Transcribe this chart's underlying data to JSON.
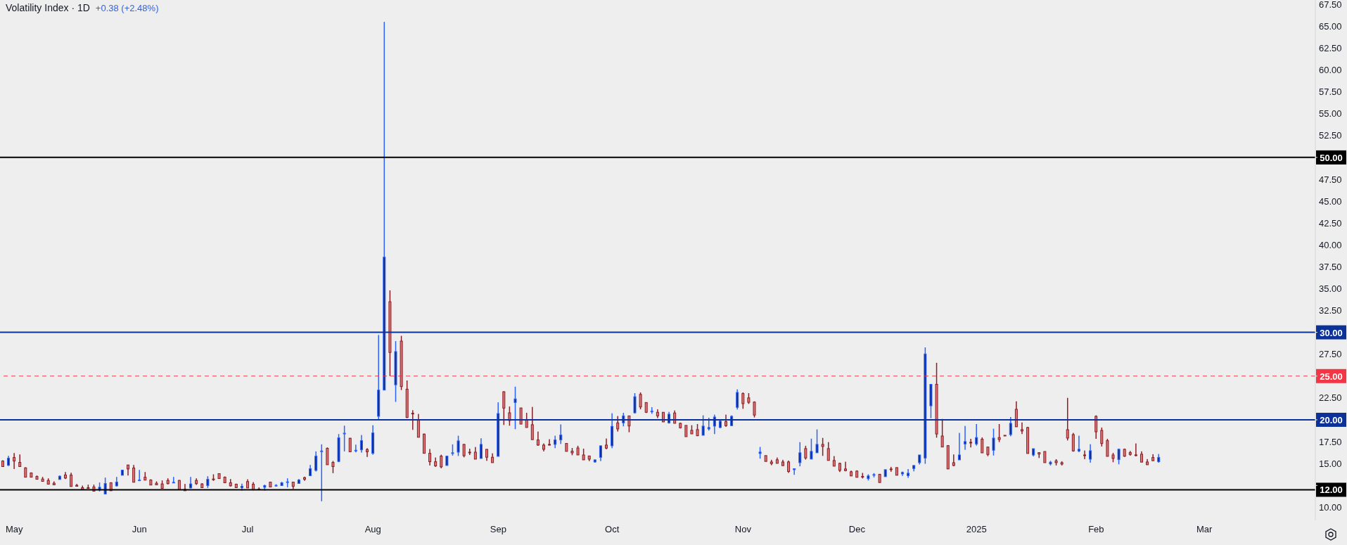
{
  "chart_data": {
    "type": "candlestick",
    "title": "Volatility Index · 1D",
    "subtitle": "+0.38 (+2.48%)",
    "categories": [
      null,
      null,
      "May",
      null,
      null,
      null,
      null,
      null,
      null,
      null,
      null,
      null,
      null,
      null,
      null,
      null,
      null,
      null,
      null,
      null,
      null,
      null,
      null,
      null,
      "Jun",
      null,
      null,
      null,
      null,
      null,
      null,
      null,
      null,
      null,
      null,
      null,
      null,
      null,
      null,
      null,
      null,
      null,
      null,
      "Jul",
      null,
      null,
      null,
      null,
      null,
      null,
      null,
      null,
      null,
      null,
      null,
      null,
      null,
      null,
      null,
      null,
      null,
      null,
      null,
      null,
      null,
      "Aug",
      null,
      null,
      null,
      null,
      null,
      null,
      null,
      null,
      null,
      null,
      null,
      null,
      null,
      null,
      null,
      null,
      null,
      null,
      null,
      null,
      null,
      "Sep",
      null,
      null,
      null,
      null,
      null,
      null,
      null,
      null,
      null,
      null,
      null,
      null,
      null,
      null,
      null,
      null,
      null,
      null,
      null,
      "Oct",
      null,
      null,
      null,
      null,
      null,
      null,
      null,
      null,
      null,
      null,
      null,
      null,
      null,
      null,
      null,
      null,
      null,
      null,
      null,
      null,
      null,
      null,
      "Nov",
      null,
      null,
      null,
      null,
      null,
      null,
      null,
      null,
      null,
      null,
      null,
      null,
      null,
      null,
      null,
      null,
      null,
      null,
      null,
      "Dec",
      null,
      null,
      null,
      null,
      null,
      null,
      null,
      null,
      null,
      null,
      null,
      null,
      null,
      null,
      null,
      null,
      null,
      null,
      null,
      null,
      "2025",
      null,
      null,
      null,
      null,
      null,
      null,
      null,
      null,
      null,
      null,
      null,
      null,
      null,
      null,
      null,
      null,
      null,
      null,
      null,
      null,
      "Feb",
      null,
      null,
      null,
      null,
      null,
      null,
      null,
      null,
      null,
      null,
      null,
      null,
      null,
      null,
      null,
      null,
      null,
      null,
      "Mar",
      null,
      null,
      null,
      null,
      null,
      null,
      null,
      null,
      null,
      null,
      null,
      null,
      null,
      null,
      null,
      null,
      null,
      null,
      null
    ],
    "ohlc": [
      [
        15.29,
        15.37,
        14.65,
        14.65
      ],
      [
        14.81,
        15.88,
        14.7,
        15.61
      ],
      [
        15.69,
        16.2,
        14.38,
        15.29
      ],
      [
        15.13,
        16.04,
        14.65,
        14.65
      ],
      [
        14.51,
        14.57,
        13.44,
        13.44
      ],
      [
        13.93,
        13.98,
        13.44,
        13.44
      ],
      [
        13.52,
        13.63,
        13.2,
        13.2
      ],
      [
        13.23,
        13.47,
        12.96,
        12.96
      ],
      [
        13.07,
        13.31,
        12.64,
        12.64
      ],
      [
        12.75,
        12.96,
        12.56,
        12.56
      ],
      [
        13.18,
        13.63,
        13.18,
        13.55
      ],
      [
        13.69,
        14.03,
        13.23,
        13.34
      ],
      [
        13.69,
        13.95,
        12.37,
        12.37
      ],
      [
        12.51,
        12.67,
        12.4,
        12.4
      ],
      [
        12.24,
        12.48,
        12.0,
        12.0
      ],
      [
        12.24,
        12.59,
        12.16,
        12.16
      ],
      [
        12.32,
        12.59,
        11.84,
        11.84
      ],
      [
        11.97,
        12.83,
        11.81,
        12.29
      ],
      [
        11.52,
        13.39,
        11.52,
        12.72
      ],
      [
        12.8,
        12.86,
        11.89,
        11.89
      ],
      [
        12.45,
        13.47,
        12.37,
        12.88
      ],
      [
        13.66,
        14.25,
        13.66,
        14.25
      ],
      [
        14.84,
        14.84,
        13.63,
        14.38
      ],
      [
        14.49,
        14.84,
        12.86,
        12.86
      ],
      [
        13.07,
        14.27,
        12.99,
        13.12
      ],
      [
        13.44,
        14.03,
        13.1,
        13.1
      ],
      [
        13.12,
        13.2,
        12.54,
        12.54
      ],
      [
        12.75,
        12.96,
        12.56,
        12.56
      ],
      [
        12.67,
        13.07,
        12.16,
        12.16
      ],
      [
        13.07,
        13.31,
        12.62,
        12.7
      ],
      [
        12.78,
        13.47,
        12.78,
        12.86
      ],
      [
        13.07,
        13.12,
        12.0,
        12.0
      ],
      [
        12.05,
        12.67,
        11.89,
        11.89
      ],
      [
        12.21,
        13.47,
        12.16,
        12.67
      ],
      [
        13.07,
        13.31,
        12.56,
        12.7
      ],
      [
        12.67,
        12.75,
        12.24,
        12.24
      ],
      [
        12.48,
        13.55,
        12.21,
        13.2
      ],
      [
        13.23,
        13.77,
        13.02,
        13.18
      ],
      [
        13.85,
        13.85,
        13.28,
        13.28
      ],
      [
        13.44,
        13.52,
        12.8,
        12.8
      ],
      [
        12.8,
        13.23,
        12.37,
        12.45
      ],
      [
        12.64,
        12.7,
        12.24,
        12.24
      ],
      [
        12.24,
        12.7,
        11.89,
        12.4
      ],
      [
        12.94,
        13.2,
        12.21,
        12.21
      ],
      [
        12.64,
        12.88,
        11.92,
        12.0
      ],
      [
        12.08,
        12.27,
        11.95,
        12.03
      ],
      [
        12.29,
        12.59,
        11.89,
        12.48
      ],
      [
        12.88,
        12.88,
        12.32,
        12.32
      ],
      [
        12.45,
        12.64,
        12.37,
        12.51
      ],
      [
        12.48,
        12.91,
        12.48,
        12.8
      ],
      [
        12.86,
        13.31,
        12.29,
        12.91
      ],
      [
        12.88,
        12.88,
        12.08,
        12.4
      ],
      [
        12.72,
        13.23,
        12.72,
        13.12
      ],
      [
        13.39,
        13.5,
        13.02,
        13.2
      ],
      [
        13.61,
        14.84,
        13.61,
        14.41
      ],
      [
        14.22,
        16.39,
        14.09,
        15.85
      ],
      [
        16.39,
        17.19,
        10.69,
        16.44
      ],
      [
        16.74,
        16.84,
        14.86,
        14.86
      ],
      [
        15.13,
        15.29,
        13.9,
        14.65
      ],
      [
        15.24,
        18.37,
        15.16,
        17.94
      ],
      [
        18.42,
        19.33,
        16.39,
        18.47
      ],
      [
        17.89,
        17.94,
        16.34,
        16.34
      ],
      [
        16.47,
        17.16,
        16.28,
        16.52
      ],
      [
        16.57,
        18.26,
        16.25,
        17.62
      ],
      [
        16.6,
        16.76,
        15.75,
        16.34
      ],
      [
        16.17,
        19.38,
        16.01,
        18.5
      ],
      [
        20.4,
        29.7,
        20.03,
        23.4
      ],
      [
        23.4,
        65.5,
        23.4,
        38.6
      ],
      [
        33.5,
        34.8,
        25.0,
        27.7
      ],
      [
        24.0,
        29.0,
        22.05,
        27.8
      ],
      [
        29.0,
        29.6,
        23.4,
        23.8
      ],
      [
        23.5,
        24.5,
        20.2,
        20.27
      ],
      [
        20.75,
        21.1,
        18.85,
        20.72
      ],
      [
        19.97,
        20.67,
        18.0,
        18.0
      ],
      [
        18.37,
        18.42,
        16.17,
        16.17
      ],
      [
        16.17,
        16.66,
        14.78,
        15.21
      ],
      [
        15.21,
        15.69,
        14.62,
        14.73
      ],
      [
        15.85,
        16.01,
        14.46,
        14.62
      ],
      [
        14.78,
        15.85,
        14.78,
        15.85
      ],
      [
        16.17,
        17.19,
        15.91,
        16.23
      ],
      [
        16.3,
        18.18,
        15.87,
        17.59
      ],
      [
        17.19,
        17.24,
        15.71,
        15.9
      ],
      [
        16.3,
        16.7,
        15.98,
        16.22
      ],
      [
        16.3,
        16.89,
        15.5,
        15.5
      ],
      [
        15.58,
        17.89,
        15.58,
        17.19
      ],
      [
        16.63,
        16.63,
        15.31,
        15.72
      ],
      [
        15.72,
        16.17,
        15.1,
        15.1
      ],
      [
        15.82,
        22.0,
        15.82,
        20.72
      ],
      [
        23.21,
        23.26,
        19.41,
        21.34
      ],
      [
        20.8,
        21.52,
        19.33,
        19.92
      ],
      [
        21.98,
        23.79,
        18.93,
        22.39
      ],
      [
        21.36,
        21.36,
        19.51,
        19.51
      ],
      [
        19.97,
        20.8,
        19.12,
        19.12
      ],
      [
        19.44,
        21.47,
        17.73,
        17.73
      ],
      [
        17.7,
        18.66,
        17.03,
        17.11
      ],
      [
        17.11,
        17.3,
        16.39,
        16.63
      ],
      [
        17.19,
        17.78,
        17.06,
        17.14
      ],
      [
        17.19,
        18.18,
        16.76,
        17.7
      ],
      [
        17.7,
        19.47,
        17.24,
        18.26
      ],
      [
        17.3,
        17.3,
        16.39,
        16.39
      ],
      [
        16.41,
        16.78,
        15.95,
        16.22
      ],
      [
        16.78,
        17.03,
        15.98,
        15.98
      ],
      [
        15.98,
        16.7,
        15.42,
        15.42
      ],
      [
        15.87,
        15.87,
        15.28,
        15.5
      ],
      [
        15.18,
        15.45,
        15.1,
        15.42
      ],
      [
        15.71,
        17.03,
        15.28,
        17.03
      ],
      [
        17.11,
        17.86,
        16.63,
        16.76
      ],
      [
        17.03,
        20.75,
        16.76,
        19.25
      ],
      [
        19.65,
        20.43,
        18.66,
        18.96
      ],
      [
        19.65,
        20.8,
        19.25,
        20.45
      ],
      [
        20.45,
        20.45,
        18.58,
        19.3
      ],
      [
        20.8,
        23.05,
        20.72,
        22.64
      ],
      [
        22.91,
        23.13,
        21.2,
        21.47
      ],
      [
        21.98,
        21.98,
        20.78,
        20.86
      ],
      [
        20.94,
        21.44,
        20.69,
        20.99
      ],
      [
        20.86,
        21.2,
        20.19,
        20.45
      ],
      [
        20.86,
        20.86,
        19.76,
        19.76
      ],
      [
        19.65,
        20.91,
        19.57,
        20.64
      ],
      [
        20.78,
        21.07,
        19.6,
        19.6
      ],
      [
        19.6,
        19.68,
        19.01,
        19.09
      ],
      [
        19.36,
        19.36,
        18.07,
        18.07
      ],
      [
        18.8,
        19.38,
        18.39,
        18.39
      ],
      [
        18.88,
        19.52,
        18.13,
        18.18
      ],
      [
        18.23,
        20.51,
        18.23,
        19.28
      ],
      [
        18.96,
        20.24,
        18.77,
        19.12
      ],
      [
        19.28,
        20.59,
        18.37,
        20.32
      ],
      [
        19.12,
        19.95,
        19.04,
        19.84
      ],
      [
        19.79,
        20.59,
        19.2,
        19.33
      ],
      [
        19.33,
        20.51,
        19.33,
        20.4
      ],
      [
        21.42,
        23.48,
        21.18,
        23.13
      ],
      [
        23.0,
        23.13,
        21.26,
        21.85
      ],
      [
        22.51,
        23.05,
        21.82,
        22.0
      ],
      [
        22.03,
        22.11,
        20.27,
        20.54
      ],
      [
        16.15,
        16.9,
        15.56,
        16.31
      ],
      [
        15.91,
        15.91,
        15.24,
        15.24
      ],
      [
        15.18,
        15.43,
        14.81,
        15.0
      ],
      [
        15.43,
        15.69,
        15.02,
        15.02
      ],
      [
        15.18,
        15.43,
        14.76,
        14.76
      ],
      [
        15.18,
        15.34,
        13.93,
        14.09
      ],
      [
        14.3,
        14.41,
        13.71,
        14.41
      ],
      [
        15.1,
        17.45,
        14.68,
        16.23
      ],
      [
        16.71,
        17.03,
        15.45,
        15.64
      ],
      [
        15.51,
        17.85,
        15.51,
        16.39
      ],
      [
        16.23,
        18.9,
        16.23,
        17.19
      ],
      [
        17.19,
        17.93,
        15.88,
        16.95
      ],
      [
        16.71,
        17.45,
        15.35,
        15.35
      ],
      [
        15.35,
        15.85,
        14.7,
        14.7
      ],
      [
        15.02,
        15.1,
        14.03,
        14.22
      ],
      [
        14.38,
        15.21,
        14.11,
        14.19
      ],
      [
        14.06,
        14.19,
        13.58,
        13.58
      ],
      [
        14.14,
        14.22,
        13.42,
        13.42
      ],
      [
        13.53,
        13.93,
        13.29,
        13.47
      ],
      [
        13.28,
        13.77,
        13.07,
        13.58
      ],
      [
        13.69,
        13.9,
        13.42,
        13.74
      ],
      [
        13.77,
        13.82,
        12.83,
        12.83
      ],
      [
        13.5,
        14.3,
        13.5,
        14.3
      ],
      [
        14.38,
        14.62,
        14.06,
        14.33
      ],
      [
        14.54,
        14.54,
        13.66,
        13.66
      ],
      [
        13.82,
        14.09,
        13.58,
        13.98
      ],
      [
        13.62,
        14.37,
        13.36,
        13.89
      ],
      [
        14.43,
        14.78,
        14.11,
        14.78
      ],
      [
        15.1,
        15.98,
        14.89,
        15.98
      ],
      [
        15.63,
        28.28,
        14.97,
        27.53
      ],
      [
        21.6,
        24.06,
        20.18,
        24.06
      ],
      [
        24.06,
        26.52,
        17.96,
        18.38
      ],
      [
        18.15,
        20.1,
        16.89,
        16.89
      ],
      [
        17.05,
        17.11,
        14.38,
        14.38
      ],
      [
        15.1,
        16.04,
        14.7,
        14.78
      ],
      [
        15.42,
        18.5,
        15.42,
        15.98
      ],
      [
        17.24,
        19.3,
        16.57,
        17.51
      ],
      [
        17.43,
        17.83,
        16.84,
        17.38
      ],
      [
        17.24,
        19.52,
        17.05,
        17.97
      ],
      [
        17.78,
        17.99,
        16.22,
        16.22
      ],
      [
        16.89,
        16.89,
        15.84,
        16.04
      ],
      [
        16.52,
        18.98,
        15.92,
        17.91
      ],
      [
        17.97,
        19.52,
        17.45,
        17.75
      ],
      [
        18.23,
        18.23,
        18.15,
        18.15
      ],
      [
        18.31,
        20.32,
        18.12,
        19.6
      ],
      [
        21.2,
        22.11,
        19.2,
        19.2
      ],
      [
        18.88,
        19.7,
        18.37,
        18.72
      ],
      [
        19.12,
        19.2,
        16.15,
        16.15
      ],
      [
        15.98,
        16.7,
        15.82,
        16.7
      ],
      [
        16.25,
        16.3,
        15.63,
        16.09
      ],
      [
        16.38,
        16.38,
        15.1,
        15.1
      ],
      [
        14.96,
        15.31,
        14.78,
        15.15
      ],
      [
        15.31,
        15.5,
        14.78,
        15.1
      ],
      [
        15.1,
        15.26,
        14.78,
        14.94
      ],
      [
        18.87,
        22.51,
        17.64,
        17.91
      ],
      [
        18.31,
        18.5,
        16.36,
        16.44
      ],
      [
        16.44,
        18.18,
        16.3,
        16.63
      ],
      [
        15.98,
        16.49,
        15.5,
        15.9
      ],
      [
        15.5,
        17.21,
        15.1,
        16.46
      ],
      [
        20.4,
        20.51,
        17.83,
        18.63
      ],
      [
        18.79,
        19.12,
        16.95,
        17.29
      ],
      [
        17.62,
        17.83,
        15.82,
        15.82
      ],
      [
        15.98,
        16.22,
        15.15,
        15.58
      ],
      [
        15.45,
        16.71,
        14.91,
        16.63
      ],
      [
        16.63,
        16.71,
        15.76,
        15.84
      ],
      [
        16.25,
        16.44,
        15.9,
        16.04
      ],
      [
        15.99,
        17.3,
        15.83,
        15.91
      ],
      [
        16.07,
        16.39,
        15.16,
        15.16
      ],
      [
        15.18,
        15.51,
        14.86,
        14.86
      ],
      [
        15.69,
        16.07,
        15.32,
        15.32
      ],
      [
        15.21,
        16.09,
        15.1,
        15.7
      ],
      null,
      null,
      null,
      null,
      null,
      null,
      null,
      null,
      null,
      null,
      null,
      null,
      null,
      null,
      null,
      null,
      null,
      null,
      null,
      null,
      null,
      null,
      null,
      null,
      null,
      null,
      null
    ],
    "colors": [
      "#8b1e24",
      "#2962ff",
      "#8b1e24",
      "#8b1e24",
      "#8b1e24",
      "#8b1e24",
      "#8b1e24",
      "#8b1e24",
      "#8b1e24",
      "#8b1e24",
      "#2962ff",
      "#8b1e24",
      "#8b1e24",
      "#8b1e24",
      "#8b1e24",
      "#8b1e24",
      "#8b1e24",
      "#2962ff",
      "#2962ff",
      "#8b1e24",
      "#2962ff",
      "#2962ff",
      "#8b1e24",
      "#8b1e24",
      "#2962ff",
      "#8b1e24",
      "#8b1e24",
      "#8b1e24",
      "#8b1e24",
      "#8b1e24",
      "#2962ff",
      "#8b1e24",
      "#8b1e24",
      "#2962ff",
      "#8b1e24",
      "#8b1e24",
      "#2962ff",
      "#8b1e24",
      "#8b1e24",
      "#8b1e24",
      "#8b1e24",
      "#8b1e24",
      "#2962ff",
      "#8b1e24",
      "#8b1e24",
      "#8b1e24",
      "#2962ff",
      "#8b1e24",
      "#2962ff",
      "#2962ff",
      "#2962ff",
      "#8b1e24",
      "#2962ff",
      "#8b1e24",
      "#2962ff",
      "#2962ff",
      "#2962ff",
      "#8b1e24",
      "#8b1e24",
      "#2962ff",
      "#2962ff",
      "#8b1e24",
      "#2962ff",
      "#2962ff",
      "#8b1e24",
      "#2962ff",
      "#2962ff",
      "#2962ff",
      "#8b1e24",
      "#2962ff",
      "#8b1e24",
      "#8b1e24",
      "#8b1e24",
      "#8b1e24",
      "#8b1e24",
      "#8b1e24",
      "#8b1e24",
      "#8b1e24",
      "#2962ff",
      "#2962ff",
      "#2962ff",
      "#8b1e24",
      "#8b1e24",
      "#8b1e24",
      "#2962ff",
      "#8b1e24",
      "#8b1e24",
      "#2962ff",
      "#8b1e24",
      "#8b1e24",
      "#2962ff",
      "#8b1e24",
      "#8b1e24",
      "#8b1e24",
      "#8b1e24",
      "#8b1e24",
      "#8b1e24",
      "#2962ff",
      "#2962ff",
      "#8b1e24",
      "#8b1e24",
      "#8b1e24",
      "#8b1e24",
      "#8b1e24",
      "#2962ff",
      "#2962ff",
      "#8b1e24",
      "#2962ff",
      "#8b1e24",
      "#2962ff",
      "#8b1e24",
      "#2962ff",
      "#8b1e24",
      "#8b1e24",
      "#2962ff",
      "#8b1e24",
      "#8b1e24",
      "#2962ff",
      "#8b1e24",
      "#8b1e24",
      "#8b1e24",
      "#8b1e24",
      "#8b1e24",
      "#2962ff",
      "#2962ff",
      "#2962ff",
      "#2962ff",
      "#8b1e24",
      "#2962ff",
      "#2962ff",
      "#8b1e24",
      "#8b1e24",
      "#8b1e24",
      "#2962ff",
      "#8b1e24",
      "#8b1e24",
      "#8b1e24",
      "#8b1e24",
      "#8b1e24",
      "#2962ff",
      "#2962ff",
      "#8b1e24",
      "#2962ff",
      "#2962ff",
      "#8b1e24",
      "#8b1e24",
      "#8b1e24",
      "#8b1e24",
      "#8b1e24",
      "#8b1e24",
      "#8b1e24",
      "#8b1e24",
      "#2962ff",
      "#2962ff",
      "#8b1e24",
      "#2962ff",
      "#8b1e24",
      "#8b1e24",
      "#2962ff",
      "#2962ff",
      "#2962ff",
      "#2962ff",
      "#2962ff",
      "#2962ff",
      "#8b1e24",
      "#8b1e24",
      "#8b1e24",
      "#8b1e24",
      "#2962ff",
      "#2962ff",
      "#8b1e24",
      "#2962ff",
      "#8b1e24",
      "#8b1e24",
      "#2962ff",
      "#8b1e24",
      "#8b1e24",
      "#2962ff",
      "#8b1e24",
      "#8b1e24",
      "#8b1e24",
      "#2962ff",
      "#8b1e24",
      "#8b1e24",
      "#2962ff",
      "#8b1e24",
      "#8b1e24",
      "#8b1e24",
      "#8b1e24",
      "#2962ff",
      "#8b1e24",
      "#2962ff",
      "#8b1e24",
      "#8b1e24",
      "#8b1e24",
      "#8b1e24",
      "#2962ff",
      "#8b1e24",
      "#8b1e24",
      "#8b1e24",
      "#8b1e24",
      "#8b1e24",
      "#8b1e24",
      "#2962ff",
      null,
      null,
      null,
      null,
      null,
      null,
      null,
      null,
      null,
      null,
      null,
      null,
      null,
      null,
      null,
      null,
      null,
      null,
      null,
      null,
      null,
      null,
      null,
      null,
      null,
      null,
      null
    ],
    "ylim": [
      8.5,
      68
    ],
    "yticks": [
      {
        "value": 10,
        "label": "10.00"
      },
      {
        "value": 12.5,
        "label": null
      },
      {
        "value": 15,
        "label": "15.00"
      },
      {
        "value": 17.5,
        "label": "17.50"
      },
      {
        "value": 20,
        "label": null
      },
      {
        "value": 22.5,
        "label": "22.50"
      },
      {
        "value": 25,
        "label": null
      },
      {
        "value": 27.5,
        "label": "27.50"
      },
      {
        "value": 30,
        "label": null
      },
      {
        "value": 32.5,
        "label": "32.50"
      },
      {
        "value": 35,
        "label": "35.00"
      },
      {
        "value": 37.5,
        "label": "37.50"
      },
      {
        "value": 40,
        "label": "40.00"
      },
      {
        "value": 42.5,
        "label": "42.50"
      },
      {
        "value": 45,
        "label": "45.00"
      },
      {
        "value": 47.5,
        "label": "47.50"
      },
      {
        "value": 50,
        "label": null
      },
      {
        "value": 52.5,
        "label": "52.50"
      },
      {
        "value": 55,
        "label": "55.00"
      },
      {
        "value": 57.5,
        "label": "57.50"
      },
      {
        "value": 60,
        "label": "60.00"
      },
      {
        "value": 62.5,
        "label": "62.50"
      },
      {
        "value": 65,
        "label": "65.00"
      },
      {
        "value": 67.5,
        "label": "67.50"
      }
    ],
    "ref_lines": [
      {
        "axis": "y",
        "value": 50,
        "label": "50.00",
        "color": "#000000",
        "line_style": "solid"
      },
      {
        "axis": "y",
        "value": 30,
        "label": "30.00",
        "color": "#0c3299",
        "line_style": "solid"
      },
      {
        "axis": "y",
        "value": 25,
        "label": "25.00",
        "color": "#f23645",
        "line_style": "dashed"
      },
      {
        "axis": "y",
        "value": 20,
        "label": "20.00",
        "color": "#0c3299",
        "line_style": "solid"
      },
      {
        "axis": "y",
        "value": 12,
        "label": "12.00",
        "color": "#000000",
        "line_style": "solid"
      }
    ]
  }
}
